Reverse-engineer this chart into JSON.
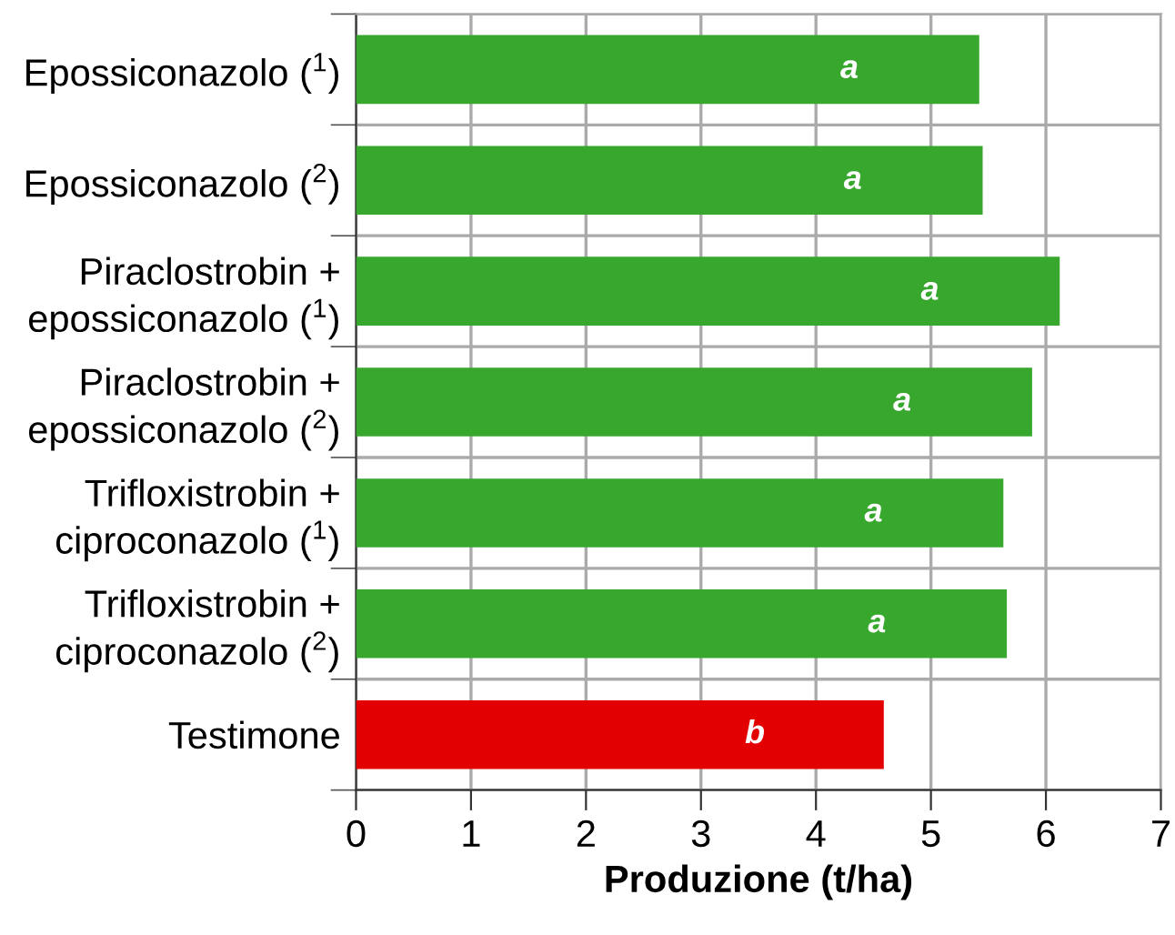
{
  "chart_data": {
    "type": "bar",
    "orientation": "horizontal",
    "xlabel": "Produzione (t/ha)",
    "categories": [
      "Epossiconazolo ($^{1}$)",
      "Epossiconazolo ($^{2}$)",
      "Piraclostrobin +\nepossiconazolo ($^{1}$)",
      "Piraclostrobin +\nepossiconazolo ($^{2}$)",
      "Trifloxistrobin +\nciproconazolo ($^{1}$)",
      "Trifloxistrobin +\nciproconazolo ($^{2}$)",
      "Testimone"
    ],
    "values": [
      5.42,
      5.45,
      6.12,
      5.88,
      5.63,
      5.66,
      4.59
    ],
    "colors": [
      "#37a72e",
      "#37a72e",
      "#37a72e",
      "#37a72e",
      "#37a72e",
      "#37a72e",
      "#e30000"
    ],
    "value_labels": [
      "a",
      "a",
      "a",
      "a",
      "a",
      "a",
      "b"
    ],
    "xlim": [
      0,
      7
    ],
    "xticks": [
      0,
      1,
      2,
      3,
      4,
      5,
      6,
      7
    ],
    "grid": true
  }
}
